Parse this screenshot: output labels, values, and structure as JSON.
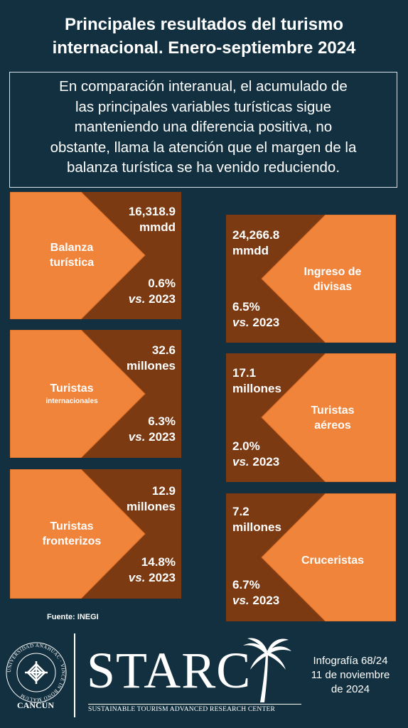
{
  "title": {
    "line1": "Principales resultados del turismo",
    "line2": "internacional. Enero-septiembre 2024"
  },
  "summary": {
    "line1": "En comparación interanual, el acumulado de",
    "line2": "las principales variables turísticas sigue",
    "line3": "manteniendo una diferencia positiva, no",
    "line4": "obstante, llama la atención que el margen de la",
    "line5": "balanza turística se ha venido reduciendo."
  },
  "colors": {
    "background": "#12303f",
    "card": "#7b3a12",
    "arrow": "#f0843a"
  },
  "cards": {
    "balanza": {
      "label1": "Balanza",
      "label2": "turística",
      "value1": "16,318.9",
      "value2": "mmdd",
      "pct": "0.6%",
      "vs_prefix": "vs.",
      "vs_year": "2023"
    },
    "ingreso": {
      "label1": "Ingreso de",
      "label2": "divisas",
      "value1": "24,266.8",
      "value2": "mmdd",
      "pct": "6.5%",
      "vs_prefix": "vs.",
      "vs_year": "2023"
    },
    "internacionales": {
      "label1": "Turistas",
      "label2": "internacionales",
      "value1": "32.6",
      "value2": "millones",
      "pct": "6.3%",
      "vs_prefix": "vs.",
      "vs_year": "2023"
    },
    "aereos": {
      "label1": "Turistas",
      "label2": "aéreos",
      "value1": "17.1",
      "value2": "millones",
      "pct": "2.0%",
      "vs_prefix": "vs.",
      "vs_year": "2023"
    },
    "fronterizos": {
      "label1": "Turistas",
      "label2": "fronterizos",
      "value1": "12.9",
      "value2": "millones",
      "pct": "14.8%",
      "vs_prefix": "vs.",
      "vs_year": "2023"
    },
    "cruceristas": {
      "label1": "Cruceristas",
      "value1": "7.2",
      "value2": "millones",
      "pct": "6.7%",
      "vs_prefix": "vs.",
      "vs_year": "2023"
    }
  },
  "source": "Fuente: INEGI",
  "footer": {
    "university_ring": "UNIVERSIDAD ANÁHUAC · VINCE IN BONO MALUM",
    "university_city": "CANCÚN",
    "brand": "STARC",
    "brand_subtitle": "SUSTAINABLE TOURISM ADVANCED RESEARCH CENTER",
    "info_line1": "Infografía 68/24",
    "info_line2": "11 de noviembre",
    "info_line3": "de 2024",
    "palm_icon": "palm-tree-icon"
  }
}
